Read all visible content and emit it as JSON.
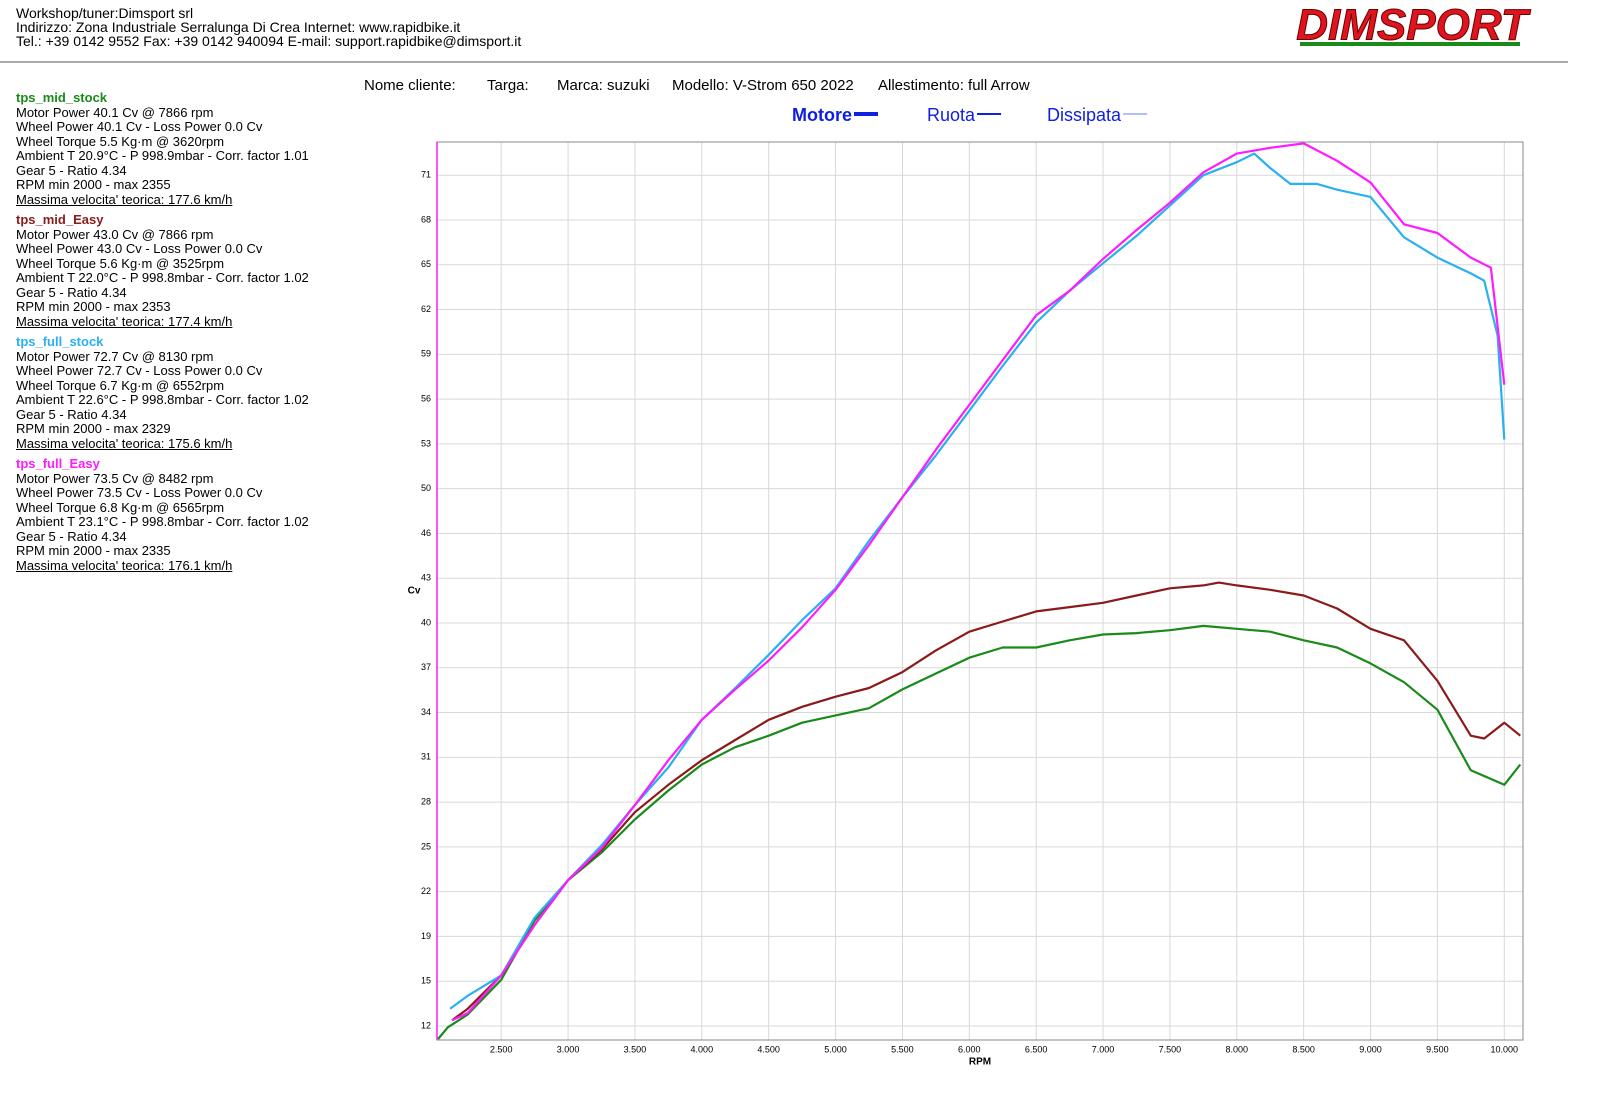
{
  "header": {
    "lines": [
      "Workshop/tuner:Dimsport srl",
      "Indirizzo: Zona Industriale Serralunga Di Crea Internet: www.rapidbike.it",
      "Tel.: +39 0142 9552 Fax: +39 0142 940094 E-mail: support.rapidbike@dimsport.it"
    ],
    "logo": "DIMSPORT"
  },
  "vehicle": [
    "Nome cliente:",
    "Targa:",
    "Marca: suzuki",
    "Modello: V-Strom 650 2022",
    "Allestimento: full Arrow"
  ],
  "curve_types": [
    "Motore",
    "Ruota",
    "Dissipata"
  ],
  "chart_data": {
    "type": "line",
    "xlabel": "RPM",
    "ylabel": "Cv",
    "grid": true,
    "xlim": [
      2020,
      10140
    ],
    "ylim": [
      11.33,
      73.5
    ],
    "xticks": [
      {
        "value": 2500,
        "label": "2.500"
      },
      {
        "value": 3000,
        "label": "3.000"
      },
      {
        "value": 3500,
        "label": "3.500"
      },
      {
        "value": 4000,
        "label": "4.000"
      },
      {
        "value": 4500,
        "label": "4.500"
      },
      {
        "value": 5000,
        "label": "5.000"
      },
      {
        "value": 5500,
        "label": "5.500"
      },
      {
        "value": 6000,
        "label": "6.000"
      },
      {
        "value": 6500,
        "label": "6.500"
      },
      {
        "value": 7000,
        "label": "7.000"
      },
      {
        "value": 7500,
        "label": "7.500"
      },
      {
        "value": 8000,
        "label": "8.000"
      },
      {
        "value": 8500,
        "label": "8.500"
      },
      {
        "value": 9000,
        "label": "9.000"
      },
      {
        "value": 9500,
        "label": "9.500"
      },
      {
        "value": 10000,
        "label": "10.000"
      }
    ],
    "yticks": [
      {
        "value": 12.3,
        "label": "12"
      },
      {
        "value": 15.4,
        "label": "15"
      },
      {
        "value": 18.5,
        "label": "19"
      },
      {
        "value": 21.6,
        "label": "22"
      },
      {
        "value": 24.7,
        "label": "25"
      },
      {
        "value": 27.8,
        "label": "28"
      },
      {
        "value": 30.9,
        "label": "31"
      },
      {
        "value": 34.0,
        "label": "34"
      },
      {
        "value": 37.1,
        "label": "37"
      },
      {
        "value": 40.2,
        "label": "40"
      },
      {
        "value": 43.3,
        "label": "43"
      },
      {
        "value": 46.4,
        "label": "46"
      },
      {
        "value": 49.5,
        "label": "50"
      },
      {
        "value": 52.6,
        "label": "53"
      },
      {
        "value": 55.7,
        "label": "56"
      },
      {
        "value": 58.8,
        "label": "59"
      },
      {
        "value": 61.9,
        "label": "62"
      },
      {
        "value": 65.0,
        "label": "65"
      },
      {
        "value": 68.1,
        "label": "68"
      },
      {
        "value": 71.2,
        "label": "71"
      }
    ],
    "series": [
      {
        "name": "tps_mid_stock",
        "color": "#1a8a1a",
        "info": [
          "Motor Power 40.1 Cv  @ 7866 rpm",
          "Wheel Power 40.1 Cv  - Loss Power 0.0 Cv",
          "Wheel Torque 5.5 Kg·m  @ 3620rpm",
          "Ambient T 20.9°C - P 998.9mbar - Corr. factor 1.01",
          "Gear 5 - Ratio 4.34",
          "RPM min 2000 - max 2355",
          "Massima velocita' teorica: 177.6 km/h"
        ],
        "x": [
          2028,
          2100,
          2250,
          2500,
          2750,
          3000,
          3250,
          3500,
          3750,
          4000,
          4250,
          4500,
          4750,
          5000,
          5250,
          5500,
          5750,
          6000,
          6250,
          6500,
          6750,
          7000,
          7250,
          7500,
          7750,
          8000,
          8250,
          8500,
          8750,
          9000,
          9250,
          9500,
          9750,
          10000,
          10120
        ],
        "values": [
          11.4,
          12.2,
          13.1,
          15.5,
          19.6,
          22.4,
          24.3,
          26.6,
          28.6,
          30.4,
          31.6,
          32.4,
          33.3,
          33.8,
          34.3,
          35.6,
          36.7,
          37.8,
          38.5,
          38.5,
          39.0,
          39.4,
          39.5,
          39.7,
          40.0,
          39.8,
          39.6,
          39.0,
          38.5,
          37.4,
          36.1,
          34.2,
          30.0,
          29.0,
          30.4
        ]
      },
      {
        "name": "tps_mid_Easy",
        "color": "#8b1a1a",
        "info": [
          "Motor Power 43.0 Cv  @ 7866 rpm",
          "Wheel Power 43.0 Cv  - Loss Power 0.0 Cv",
          "Wheel Torque 5.6 Kg·m  @ 3525rpm",
          "Ambient T 22.0°C - P 998.8mbar - Corr. factor 1.02",
          "Gear 5 - Ratio 4.34",
          "RPM min 2000 - max 2353",
          "Massima velocita' teorica: 177.4 km/h"
        ],
        "x": [
          2133,
          2250,
          2500,
          2750,
          3000,
          3250,
          3500,
          3750,
          4000,
          4250,
          4500,
          4750,
          5000,
          5250,
          5500,
          5750,
          6000,
          6250,
          6500,
          6750,
          7000,
          7250,
          7500,
          7750,
          7866,
          8000,
          8250,
          8500,
          8750,
          9000,
          9250,
          9500,
          9750,
          9850,
          10000,
          10120
        ],
        "values": [
          12.7,
          13.5,
          15.8,
          19.3,
          22.4,
          24.5,
          27.1,
          29.0,
          30.7,
          32.1,
          33.5,
          34.4,
          35.1,
          35.7,
          36.8,
          38.3,
          39.6,
          40.3,
          41.0,
          41.3,
          41.6,
          42.1,
          42.6,
          42.8,
          43.0,
          42.8,
          42.5,
          42.1,
          41.2,
          39.8,
          39.0,
          36.2,
          32.4,
          32.2,
          33.3,
          32.4
        ]
      },
      {
        "name": "tps_full_stock",
        "color": "#2ab0f0",
        "info": [
          "Motor Power 72.7 Cv  @ 8130 rpm",
          "Wheel Power 72.7 Cv  - Loss Power 0.0 Cv",
          "Wheel Torque 6.7 Kg·m  @ 6552rpm",
          "Ambient T 22.6°C - P 998.8mbar - Corr. factor 1.02",
          "Gear 5 - Ratio 4.34",
          "RPM min 2000 - max 2329",
          "Massima velocita' teorica: 175.6 km/h"
        ],
        "x": [
          2118,
          2250,
          2500,
          2750,
          3000,
          3250,
          3500,
          3750,
          4000,
          4250,
          4500,
          4750,
          5000,
          5250,
          5500,
          5750,
          6000,
          6250,
          6500,
          6750,
          7000,
          7250,
          7500,
          7750,
          8000,
          8130,
          8250,
          8400,
          8600,
          8750,
          9000,
          9250,
          9500,
          9750,
          9850,
          9950,
          10000
        ],
        "values": [
          13.5,
          14.4,
          15.8,
          19.8,
          22.4,
          24.8,
          27.6,
          30.2,
          33.5,
          35.7,
          38.0,
          40.4,
          42.6,
          45.9,
          48.9,
          51.8,
          54.9,
          58.0,
          61.0,
          63.2,
          65.1,
          67.0,
          69.1,
          71.2,
          72.1,
          72.7,
          71.7,
          70.6,
          70.6,
          70.2,
          69.7,
          66.9,
          65.5,
          64.4,
          63.9,
          60.1,
          52.9
        ]
      },
      {
        "name": "tps_full_Easy",
        "color": "#ff1aff",
        "info": [
          "Motor Power 73.5 Cv  @ 8482 rpm",
          "Wheel Power 73.5 Cv  - Loss Power 0.0 Cv",
          "Wheel Torque 6.8 Kg·m  @ 6565rpm",
          "Ambient T 23.1°C - P 998.8mbar - Corr. factor 1.02",
          "Gear 5 - Ratio 4.34",
          "RPM min 2000 - max 2335",
          "Massima velocita' teorica: 176.1 km/h"
        ],
        "x": [
          2133,
          2250,
          2500,
          2750,
          3000,
          3250,
          3500,
          3750,
          4000,
          4250,
          4500,
          4750,
          5000,
          5250,
          5500,
          5750,
          6000,
          6250,
          6500,
          6750,
          7000,
          7250,
          7500,
          7750,
          8000,
          8250,
          8500,
          8750,
          9000,
          9250,
          9500,
          9750,
          9900,
          10000
        ],
        "values": [
          12.7,
          13.2,
          15.8,
          19.3,
          22.4,
          24.6,
          27.6,
          30.7,
          33.5,
          35.6,
          37.6,
          39.9,
          42.5,
          45.6,
          48.9,
          52.2,
          55.3,
          58.4,
          61.5,
          63.2,
          65.4,
          67.4,
          69.3,
          71.4,
          72.7,
          73.1,
          73.4,
          72.2,
          70.7,
          67.8,
          67.2,
          65.5,
          64.8,
          56.7
        ]
      }
    ]
  }
}
